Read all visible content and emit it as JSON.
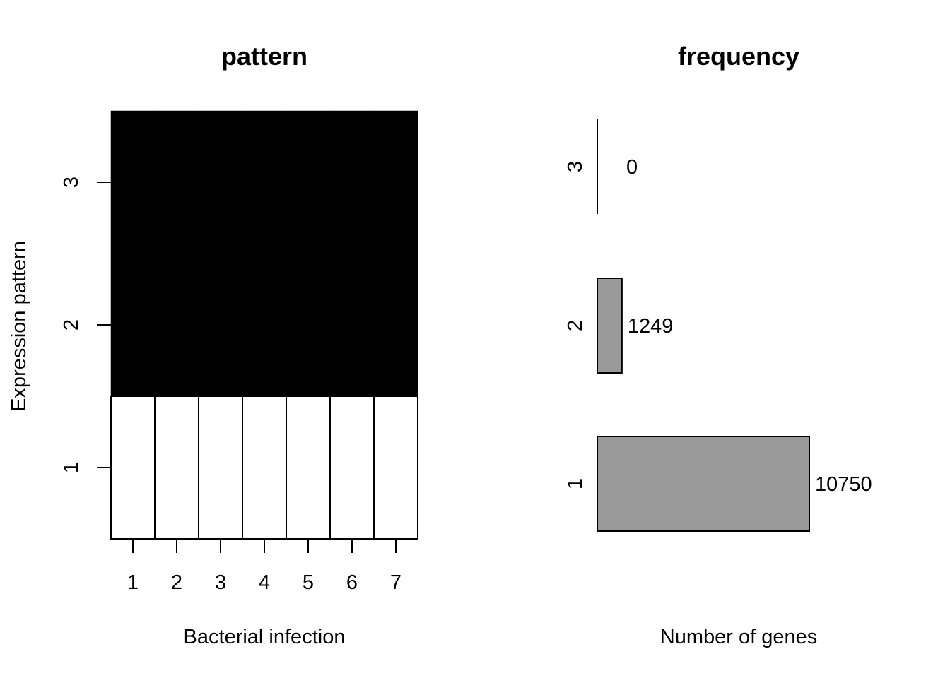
{
  "chart_data": [
    {
      "type": "heatmap",
      "title": "pattern",
      "xlabel": "Bacterial infection",
      "ylabel": "Expression pattern",
      "x_ticks": [
        "1",
        "2",
        "3",
        "4",
        "5",
        "6",
        "7"
      ],
      "y_ticks": [
        "1",
        "2",
        "3"
      ],
      "values": [
        [
          0,
          0,
          0,
          0,
          0,
          0,
          0
        ],
        [
          1,
          1,
          1,
          1,
          1,
          1,
          1
        ],
        [
          1,
          1,
          1,
          1,
          1,
          1,
          1
        ]
      ],
      "colors": {
        "0": "#ffffff",
        "1": "#000000"
      }
    },
    {
      "type": "bar",
      "orientation": "horizontal",
      "title": "frequency",
      "xlabel": "Number of genes",
      "categories": [
        "1",
        "2",
        "3"
      ],
      "values": [
        10750,
        1249,
        0
      ],
      "data_labels": [
        "10750",
        "1249",
        "0"
      ],
      "bar_color": "#999999"
    }
  ]
}
